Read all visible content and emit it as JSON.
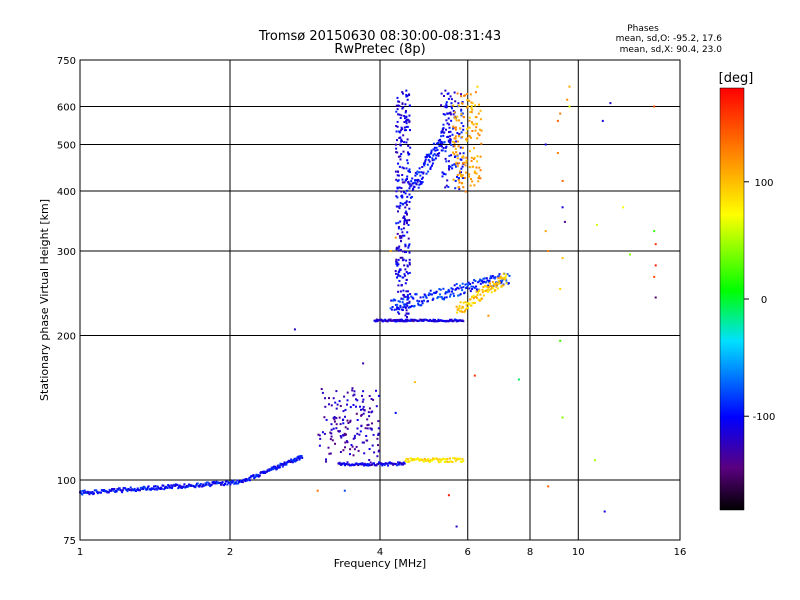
{
  "chart_data": {
    "type": "scatter",
    "title": "Tromsø 20150630 08:30:00-08:31:43",
    "subtitle": "RwPretec (8p)",
    "xlabel": "Frequency [MHz]",
    "ylabel": "Stationary phase Virtual Height [km]",
    "x_scale": "log",
    "y_scale": "log",
    "xlim": [
      1,
      16
    ],
    "ylim": [
      75,
      750
    ],
    "x_ticks": [
      1,
      2,
      4,
      6,
      8,
      10,
      16
    ],
    "x_tick_labels": [
      "1",
      "2",
      "4",
      "6",
      "8",
      "10",
      "16"
    ],
    "y_ticks": [
      75,
      100,
      200,
      300,
      400,
      500,
      600,
      750
    ],
    "y_tick_labels": [
      "75",
      "100",
      "200",
      "300",
      "400",
      "500",
      "600",
      "750"
    ],
    "grid": true,
    "stats": {
      "heading": "Phases",
      "line_o": "mean, sd,O: -95.2, 17.6",
      "line_x": "mean, sd,X: 90.4, 23.0"
    },
    "colorbar": {
      "label": "[deg]",
      "range": [
        -180,
        180
      ],
      "ticks": [
        100,
        0,
        -100
      ],
      "tick_labels": [
        "100",
        "0",
        "-100"
      ]
    },
    "segments": [
      {
        "f": [
          1.0,
          2.1
        ],
        "h": [
          94,
          99
        ],
        "phase": -100,
        "spread": 0.01
      },
      {
        "f": [
          2.1,
          2.8
        ],
        "h": [
          99,
          112
        ],
        "phase": -100,
        "spread": 0.01
      },
      {
        "f": [
          3.3,
          4.5
        ],
        "h": [
          108,
          108
        ],
        "phase": -110,
        "spread": 0.008
      },
      {
        "f": [
          4.5,
          5.9
        ],
        "h": [
          110,
          110
        ],
        "phase": 85,
        "spread": 0.01
      },
      {
        "f": [
          3.0,
          4.0
        ],
        "h": [
          110,
          155
        ],
        "phase": -125,
        "spread": 0.05
      },
      {
        "f": [
          3.9,
          4.6
        ],
        "h": [
          215,
          215
        ],
        "phase": -115,
        "spread": 0.005
      },
      {
        "f": [
          4.6,
          5.9
        ],
        "h": [
          215,
          215
        ],
        "phase": -110,
        "spread": 0.005
      },
      {
        "f": [
          4.2,
          7.3
        ],
        "h": [
          230,
          265
        ],
        "phase": -90,
        "spread": 0.03
      },
      {
        "f": [
          5.7,
          7.2
        ],
        "h": [
          225,
          265
        ],
        "phase": 95,
        "spread": 0.03
      },
      {
        "f": [
          4.3,
          4.6
        ],
        "h": [
          220,
          640
        ],
        "phase": -110,
        "spread": 0.03
      },
      {
        "f": [
          4.6,
          5.4
        ],
        "h": [
          400,
          520
        ],
        "phase": -100,
        "spread": 0.05
      },
      {
        "f": [
          5.3,
          5.9
        ],
        "h": [
          410,
          640
        ],
        "phase": -105,
        "spread": 0.04
      },
      {
        "f": [
          5.6,
          6.4
        ],
        "h": [
          410,
          640
        ],
        "phase": 110,
        "spread": 0.04
      }
    ],
    "points": [
      {
        "f": 6.6,
        "h": 220,
        "phase": 120
      },
      {
        "f": 7.6,
        "h": 162,
        "phase": -10
      },
      {
        "f": 8.6,
        "h": 500,
        "phase": -110
      },
      {
        "f": 8.6,
        "h": 330,
        "phase": 110
      },
      {
        "f": 8.7,
        "h": 300,
        "phase": 125
      },
      {
        "f": 8.7,
        "h": 97,
        "phase": 140
      },
      {
        "f": 9.1,
        "h": 560,
        "phase": 140
      },
      {
        "f": 9.1,
        "h": 480,
        "phase": 125
      },
      {
        "f": 9.2,
        "h": 580,
        "phase": 130
      },
      {
        "f": 9.3,
        "h": 420,
        "phase": 140
      },
      {
        "f": 9.3,
        "h": 370,
        "phase": -110
      },
      {
        "f": 9.4,
        "h": 345,
        "phase": -140
      },
      {
        "f": 9.3,
        "h": 290,
        "phase": 100
      },
      {
        "f": 9.2,
        "h": 250,
        "phase": 90
      },
      {
        "f": 9.2,
        "h": 195,
        "phase": 20
      },
      {
        "f": 9.3,
        "h": 135,
        "phase": 40
      },
      {
        "f": 9.5,
        "h": 620,
        "phase": 120
      },
      {
        "f": 9.6,
        "h": 660,
        "phase": 110
      },
      {
        "f": 9.6,
        "h": 600,
        "phase": 60
      },
      {
        "f": 10.8,
        "h": 110,
        "phase": 50
      },
      {
        "f": 10.9,
        "h": 340,
        "phase": 60
      },
      {
        "f": 11.2,
        "h": 560,
        "phase": -110
      },
      {
        "f": 11.3,
        "h": 86,
        "phase": -110
      },
      {
        "f": 11.6,
        "h": 610,
        "phase": -120
      },
      {
        "f": 12.3,
        "h": 370,
        "phase": 70
      },
      {
        "f": 12.7,
        "h": 295,
        "phase": 40
      },
      {
        "f": 14.2,
        "h": 330,
        "phase": 20
      },
      {
        "f": 14.2,
        "h": 600,
        "phase": 150
      },
      {
        "f": 14.3,
        "h": 310,
        "phase": 160
      },
      {
        "f": 14.3,
        "h": 280,
        "phase": 170
      },
      {
        "f": 14.2,
        "h": 265,
        "phase": 150
      },
      {
        "f": 14.3,
        "h": 240,
        "phase": -150
      },
      {
        "f": 3.0,
        "h": 95,
        "phase": 130
      },
      {
        "f": 3.4,
        "h": 95,
        "phase": -80
      },
      {
        "f": 4.3,
        "h": 138,
        "phase": -100
      },
      {
        "f": 3.7,
        "h": 175,
        "phase": -130
      },
      {
        "f": 2.7,
        "h": 206,
        "phase": -120
      },
      {
        "f": 5.5,
        "h": 93,
        "phase": 170
      },
      {
        "f": 5.7,
        "h": 80,
        "phase": -120
      },
      {
        "f": 6.2,
        "h": 165,
        "phase": 160
      },
      {
        "f": 4.7,
        "h": 160,
        "phase": 100
      },
      {
        "f": 4.3,
        "h": 320,
        "phase": 120
      },
      {
        "f": 4.2,
        "h": 300,
        "phase": 110
      }
    ]
  }
}
